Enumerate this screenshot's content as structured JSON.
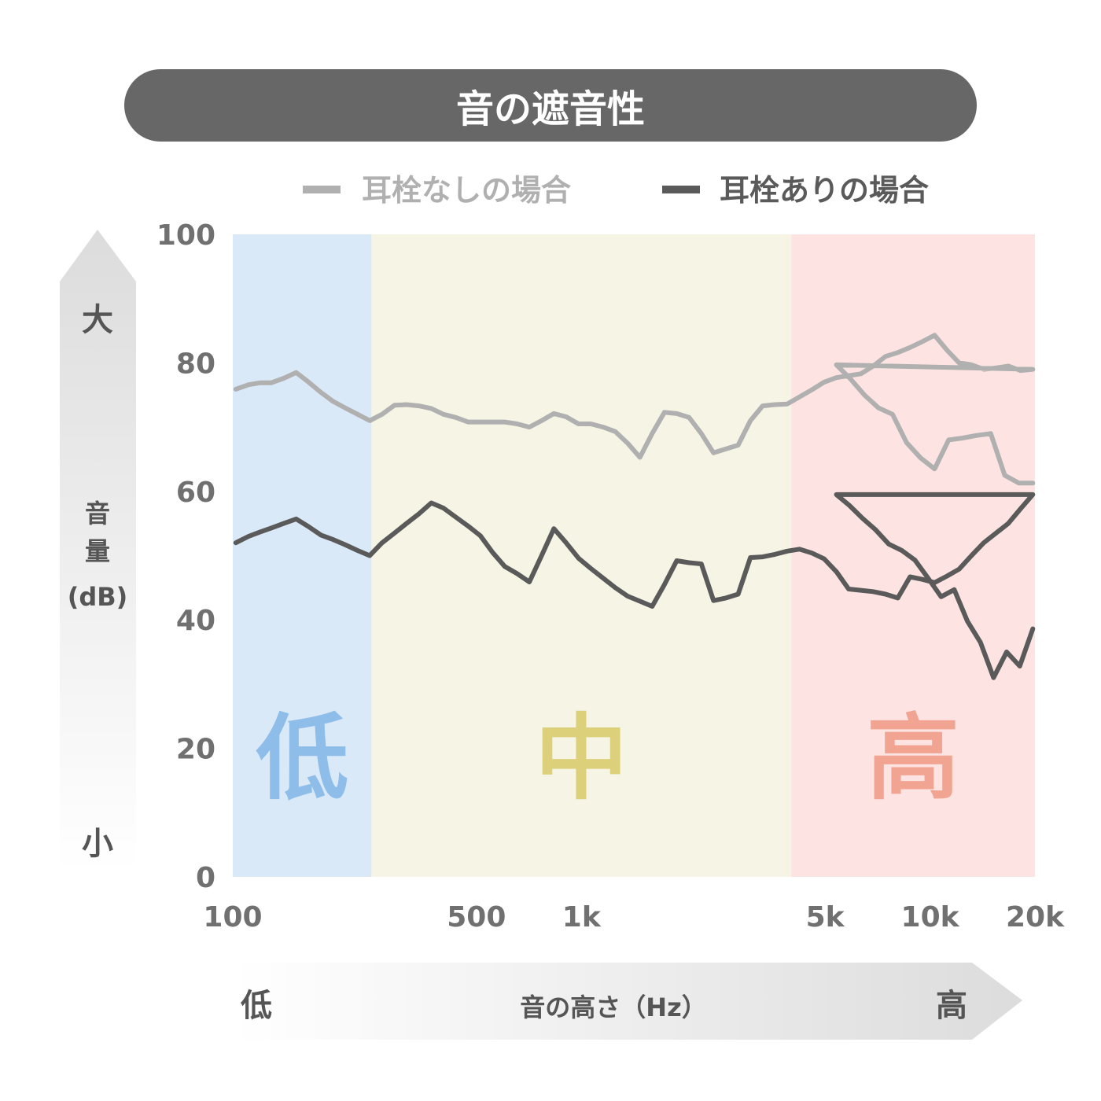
{
  "title": "音の遮音性",
  "legend": [
    {
      "label": "耳栓なしの場合",
      "color": "#b0b0b0"
    },
    {
      "label": "耳栓ありの場合",
      "color": "#5a5a5a"
    }
  ],
  "y_axis": {
    "high_word": "大",
    "low_word": "小",
    "label_line1": "音",
    "label_line2": "量",
    "label_line3": "(dB)"
  },
  "x_axis": {
    "low_word": "低",
    "high_word": "高",
    "label": "音の高さ（Hz）"
  },
  "bands": [
    {
      "label": "低",
      "color": "#dae9f8",
      "text_color": "#8dbde8",
      "from": 100,
      "to": 250
    },
    {
      "label": "中",
      "color": "#f6f5e5",
      "text_color": "#ddd07a",
      "from": 250,
      "to": 4000
    },
    {
      "label": "高",
      "color": "#fde4e2",
      "text_color": "#f2a493",
      "from": 4000,
      "to": 20000
    }
  ],
  "chart_data": {
    "type": "line",
    "xscale": "log",
    "xlim": [
      100,
      20000
    ],
    "ylim": [
      0,
      100
    ],
    "yticks": [
      0,
      20,
      40,
      60,
      80,
      100
    ],
    "xticks": [
      {
        "value": 100,
        "label": "100"
      },
      {
        "value": 500,
        "label": "500"
      },
      {
        "value": 1000,
        "label": "1k"
      },
      {
        "value": 5000,
        "label": "5k"
      },
      {
        "value": 10000,
        "label": "10k"
      },
      {
        "value": 20000,
        "label": "20k"
      }
    ],
    "x": [
      102,
      111,
      120,
      129,
      140,
      152,
      165,
      179,
      194,
      210,
      228,
      247,
      268,
      291,
      315,
      342,
      371,
      402,
      436,
      473,
      513,
      556,
      603,
      654,
      709,
      769,
      834,
      904,
      981,
      1064,
      1154,
      1251,
      1357,
      1472,
      1596,
      1731,
      1877,
      2036,
      2208,
      2394,
      2597,
      2816,
      3054,
      3312,
      3592,
      3895,
      4224,
      4581,
      4968,
      5388,
      5843,
      6337,
      6872,
      7453,
      8082,
      8765,
      9506,
      10309,
      11180,
      12124,
      13149,
      14260,
      15464,
      16771,
      18188,
      19724
    ],
    "series": [
      {
        "name": "耳栓なしの場合",
        "color": "#b0b0b0",
        "values": [
          75.9,
          76.6,
          76.9,
          76.9,
          77.6,
          78.5,
          77.0,
          75.4,
          74.0,
          73.0,
          72.0,
          71.0,
          72.0,
          73.4,
          73.5,
          73.3,
          72.9,
          72.0,
          71.5,
          70.8,
          70.8,
          70.8,
          70.8,
          70.5,
          70.0,
          71.0,
          72.1,
          71.6,
          70.5,
          70.5,
          70.0,
          69.3,
          67.5,
          65.3,
          69.0,
          72.3,
          72.1,
          71.5,
          69.0,
          66.0,
          66.6,
          67.2,
          71.0,
          73.3,
          73.5,
          73.6,
          74.7,
          75.8,
          77.0,
          77.7,
          78.0,
          78.3,
          79.5,
          81.0,
          81.6,
          82.4,
          83.3,
          84.3,
          82.0,
          80.0,
          79.7,
          79.0,
          79.2,
          79.5,
          78.8,
          79.0
        ],
        "tail_values": [
          79.7,
          77.5,
          75.0,
          73.0,
          72.0,
          67.6,
          65.2,
          63.5,
          68.0,
          68.3,
          68.7,
          69.0,
          62.5,
          61.3,
          61.3
        ]
      },
      {
        "name": "耳栓ありの場合",
        "color": "#5a5a5a",
        "values": [
          52.0,
          53.0,
          53.7,
          54.3,
          55.0,
          55.7,
          54.5,
          53.2,
          52.5,
          51.7,
          50.8,
          50.0,
          52.0,
          53.5,
          55.0,
          56.5,
          58.2,
          57.4,
          56.0,
          54.6,
          53.1,
          50.5,
          48.3,
          47.2,
          45.9,
          50.0,
          54.2,
          52.0,
          49.6,
          48.0,
          46.5,
          45.0,
          43.7,
          42.9,
          42.1,
          45.5,
          49.2,
          48.9,
          48.7,
          43.0,
          43.4,
          44.0,
          49.7,
          49.8,
          50.2,
          50.7,
          51.0,
          50.4,
          49.5,
          47.5,
          44.8,
          44.6,
          44.4,
          44.0,
          43.4,
          46.7,
          46.3,
          45.8,
          46.8,
          47.9,
          50.0,
          52.0,
          53.5,
          55.0,
          57.3,
          59.5
        ],
        "tail_values": [
          59.5,
          57.8,
          55.8,
          54.0,
          51.8,
          50.8,
          49.3,
          46.5,
          43.6,
          44.7,
          39.8,
          36.5,
          31.0,
          35.0,
          32.8,
          38.6
        ]
      }
    ]
  }
}
